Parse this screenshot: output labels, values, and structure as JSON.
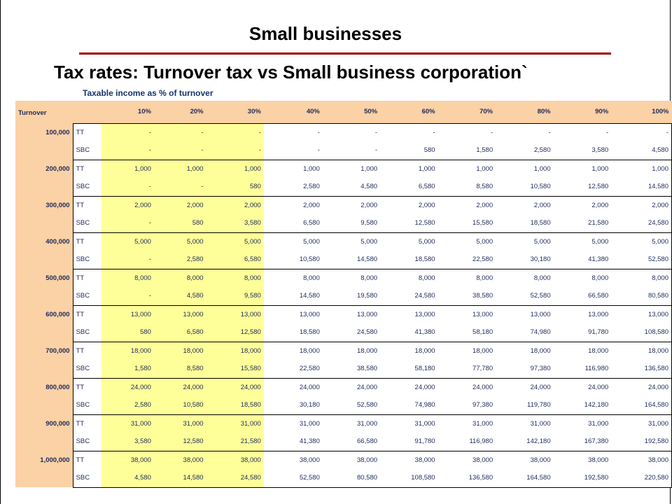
{
  "title": "Small businesses",
  "subtitle": "Tax rates: Turnover tax vs Small business corporation`",
  "caption": "Taxable income as % of turnover",
  "colors": {
    "accent_rule": "#a00000",
    "header_fill": "#fbd1a6",
    "highlight_fill": "#ffff99",
    "text": "#1d2a5a"
  },
  "table": {
    "corner_label": "Turnover",
    "percent_headers": [
      "10%",
      "20%",
      "30%",
      "40%",
      "50%",
      "60%",
      "70%",
      "80%",
      "90%",
      "100%"
    ],
    "groups": [
      {
        "turnover": "100,000",
        "rows": [
          {
            "type": "TT",
            "values": [
              "-",
              "-",
              "-",
              "-",
              "-",
              "-",
              "-",
              "-",
              "-",
              "-"
            ]
          },
          {
            "type": "SBC",
            "values": [
              "-",
              "-",
              "-",
              "-",
              "-",
              "580",
              "1,580",
              "2,580",
              "3,580",
              "4,580"
            ]
          }
        ]
      },
      {
        "turnover": "200,000",
        "rows": [
          {
            "type": "TT",
            "values": [
              "1,000",
              "1,000",
              "1,000",
              "1,000",
              "1,000",
              "1,000",
              "1,000",
              "1,000",
              "1,000",
              "1,000"
            ]
          },
          {
            "type": "SBC",
            "values": [
              "-",
              "-",
              "580",
              "2,580",
              "4,580",
              "6,580",
              "8,580",
              "10,580",
              "12,580",
              "14,580"
            ]
          }
        ]
      },
      {
        "turnover": "300,000",
        "rows": [
          {
            "type": "TT",
            "values": [
              "2,000",
              "2,000",
              "2,000",
              "2,000",
              "2,000",
              "2,000",
              "2,000",
              "2,000",
              "2,000",
              "2,000"
            ]
          },
          {
            "type": "SBC",
            "values": [
              "-",
              "580",
              "3,580",
              "6,580",
              "9,580",
              "12,580",
              "15,580",
              "18,580",
              "21,580",
              "24,580"
            ]
          }
        ]
      },
      {
        "turnover": "400,000",
        "rows": [
          {
            "type": "TT",
            "values": [
              "5,000",
              "5,000",
              "5,000",
              "5,000",
              "5,000",
              "5,000",
              "5,000",
              "5,000",
              "5,000",
              "5,000"
            ]
          },
          {
            "type": "SBC",
            "values": [
              "-",
              "2,580",
              "6,580",
              "10,580",
              "14,580",
              "18,580",
              "22,580",
              "30,180",
              "41,380",
              "52,580"
            ]
          }
        ]
      },
      {
        "turnover": "500,000",
        "rows": [
          {
            "type": "TT",
            "values": [
              "8,000",
              "8,000",
              "8,000",
              "8,000",
              "8,000",
              "8,000",
              "8,000",
              "8,000",
              "8,000",
              "8,000"
            ]
          },
          {
            "type": "SBC",
            "values": [
              "-",
              "4,580",
              "9,580",
              "14,580",
              "19,580",
              "24,580",
              "38,580",
              "52,580",
              "66,580",
              "80,580"
            ]
          }
        ]
      },
      {
        "turnover": "600,000",
        "rows": [
          {
            "type": "TT",
            "values": [
              "13,000",
              "13,000",
              "13,000",
              "13,000",
              "13,000",
              "13,000",
              "13,000",
              "13,000",
              "13,000",
              "13,000"
            ]
          },
          {
            "type": "SBC",
            "values": [
              "580",
              "6,580",
              "12,580",
              "18,580",
              "24,580",
              "41,380",
              "58,180",
              "74,980",
              "91,780",
              "108,580"
            ]
          }
        ]
      },
      {
        "turnover": "700,000",
        "rows": [
          {
            "type": "TT",
            "values": [
              "18,000",
              "18,000",
              "18,000",
              "18,000",
              "18,000",
              "18,000",
              "18,000",
              "18,000",
              "18,000",
              "18,000"
            ]
          },
          {
            "type": "SBC",
            "values": [
              "1,580",
              "8,580",
              "15,580",
              "22,580",
              "38,580",
              "58,180",
              "77,780",
              "97,380",
              "116,980",
              "136,580"
            ]
          }
        ]
      },
      {
        "turnover": "800,000",
        "rows": [
          {
            "type": "TT",
            "values": [
              "24,000",
              "24,000",
              "24,000",
              "24,000",
              "24,000",
              "24,000",
              "24,000",
              "24,000",
              "24,000",
              "24,000"
            ]
          },
          {
            "type": "SBC",
            "values": [
              "2,580",
              "10,580",
              "18,580",
              "30,180",
              "52,580",
              "74,980",
              "97,380",
              "119,780",
              "142,180",
              "164,580"
            ]
          }
        ]
      },
      {
        "turnover": "900,000",
        "rows": [
          {
            "type": "TT",
            "values": [
              "31,000",
              "31,000",
              "31,000",
              "31,000",
              "31,000",
              "31,000",
              "31,000",
              "31,000",
              "31,000",
              "31,000"
            ]
          },
          {
            "type": "SBC",
            "values": [
              "3,580",
              "12,580",
              "21,580",
              "41,380",
              "66,580",
              "91,780",
              "116,980",
              "142,180",
              "167,380",
              "192,580"
            ]
          }
        ]
      },
      {
        "turnover": "1,000,000",
        "rows": [
          {
            "type": "TT",
            "values": [
              "38,000",
              "38,000",
              "38,000",
              "38,000",
              "38,000",
              "38,000",
              "38,000",
              "38,000",
              "38,000",
              "38,000"
            ]
          },
          {
            "type": "SBC",
            "values": [
              "4,580",
              "14,580",
              "24,580",
              "52,580",
              "80,580",
              "108,580",
              "136,580",
              "164,580",
              "192,580",
              "220,580"
            ]
          }
        ]
      }
    ]
  }
}
